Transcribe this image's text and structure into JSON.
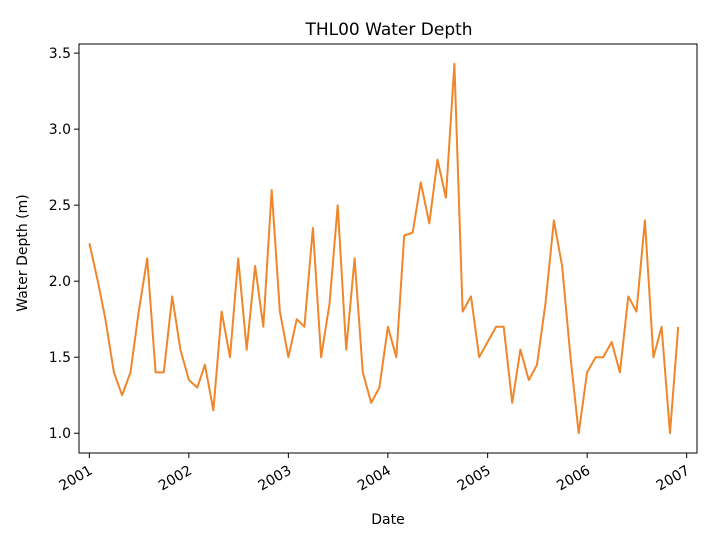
{
  "chart_data": {
    "type": "line",
    "title": "THL00 Water Depth",
    "xlabel": "Date",
    "ylabel": "Water Depth (m)",
    "xlim": [
      "2000-11-24",
      "2007-02-08"
    ],
    "ylim": [
      0.87,
      3.56
    ],
    "x_ticks": [
      "2001",
      "2002",
      "2003",
      "2004",
      "2005",
      "2006",
      "2007"
    ],
    "y_ticks": [
      "1.0",
      "1.5",
      "2.0",
      "2.5",
      "3.0",
      "3.5"
    ],
    "grid": false,
    "line_color": "#f0862a",
    "series": [
      {
        "x": [
          "2001-01-01",
          "2001-02-01",
          "2001-03-01",
          "2001-04-01",
          "2001-05-01",
          "2001-06-01",
          "2001-07-01",
          "2001-08-01",
          "2001-09-01",
          "2001-10-01",
          "2001-11-01",
          "2001-12-01",
          "2002-01-01",
          "2002-02-01",
          "2002-03-01",
          "2002-04-01",
          "2002-05-01",
          "2002-06-01",
          "2002-07-01",
          "2002-08-01",
          "2002-09-01",
          "2002-10-01",
          "2002-11-01",
          "2002-12-01",
          "2003-01-01",
          "2003-02-01",
          "2003-03-01",
          "2003-04-01",
          "2003-05-01",
          "2003-06-01",
          "2003-07-01",
          "2003-08-01",
          "2003-09-01",
          "2003-10-01",
          "2003-11-01",
          "2003-12-01",
          "2004-01-01",
          "2004-02-01",
          "2004-03-01",
          "2004-04-01",
          "2004-05-01",
          "2004-06-01",
          "2004-07-01",
          "2004-08-01",
          "2004-09-01",
          "2004-10-01",
          "2004-11-01",
          "2004-12-01",
          "2005-01-01",
          "2005-02-01",
          "2005-03-01",
          "2005-04-01",
          "2005-05-01",
          "2005-06-01",
          "2005-07-01",
          "2005-08-01",
          "2005-09-01",
          "2005-10-01",
          "2005-11-01",
          "2005-12-01",
          "2006-01-01",
          "2006-02-01",
          "2006-03-01",
          "2006-04-01",
          "2006-05-01",
          "2006-06-01",
          "2006-07-01",
          "2006-08-01",
          "2006-09-01",
          "2006-10-01",
          "2006-11-01",
          "2006-12-01"
        ],
        "values": [
          2.25,
          2.0,
          1.75,
          1.4,
          1.25,
          1.4,
          1.8,
          2.15,
          1.4,
          1.4,
          1.9,
          1.55,
          1.35,
          1.3,
          1.45,
          1.15,
          1.8,
          1.5,
          2.15,
          1.55,
          2.1,
          1.7,
          2.6,
          1.8,
          1.5,
          1.75,
          1.7,
          2.35,
          1.5,
          1.85,
          2.5,
          1.55,
          2.15,
          1.4,
          1.2,
          1.3,
          1.7,
          1.5,
          2.3,
          2.32,
          2.65,
          2.38,
          2.8,
          2.55,
          3.43,
          1.8,
          1.9,
          1.5,
          1.6,
          1.7,
          1.7,
          1.2,
          1.55,
          1.35,
          1.45,
          1.85,
          2.4,
          2.1,
          1.5,
          1.0,
          1.4,
          1.5,
          1.5,
          1.6,
          1.4,
          1.9,
          1.8,
          2.4,
          1.5,
          1.7,
          1.0,
          1.7
        ]
      }
    ]
  }
}
